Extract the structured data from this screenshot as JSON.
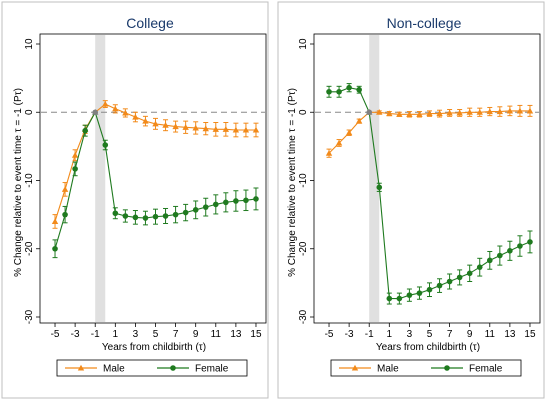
{
  "chart_data": [
    {
      "type": "line",
      "title": "College",
      "xlabel": "Years from childbirth (τ)",
      "ylabel": "% Change relative to event time τ = -1 (Pτ)",
      "xlim": [
        -5.5,
        15.5
      ],
      "ylim": [
        -30,
        10
      ],
      "xticks": [
        -5,
        -3,
        -1,
        1,
        3,
        5,
        7,
        9,
        11,
        13,
        15
      ],
      "yticks": [
        -30,
        -20,
        -10,
        0,
        10
      ],
      "shaded_band": [
        -1,
        0
      ],
      "reference_line": 0,
      "x": [
        -5,
        -4,
        -3,
        -2,
        -1,
        0,
        1,
        2,
        3,
        4,
        5,
        6,
        7,
        8,
        9,
        10,
        11,
        12,
        13,
        14,
        15
      ],
      "series": [
        {
          "name": "Male",
          "color": "#f28a1a",
          "marker": "triangle",
          "values": [
            -16,
            -11.3,
            -6.3,
            -2.5,
            0,
            1.2,
            0.5,
            -0.1,
            -0.7,
            -1.3,
            -1.7,
            -1.9,
            -2.1,
            -2.2,
            -2.3,
            -2.4,
            -2.5,
            -2.5,
            -2.6,
            -2.6,
            -2.6
          ],
          "err": [
            1,
            1,
            0.8,
            0.6,
            0,
            0.5,
            0.6,
            0.6,
            0.7,
            0.7,
            0.8,
            0.8,
            0.8,
            0.9,
            0.9,
            0.9,
            1,
            1,
            1,
            1,
            1
          ]
        },
        {
          "name": "Female",
          "color": "#1f7a1f",
          "marker": "circle",
          "values": [
            -20,
            -15,
            -8.3,
            -2.7,
            0,
            -4.8,
            -14.8,
            -15.2,
            -15.4,
            -15.5,
            -15.3,
            -15.2,
            -15,
            -14.7,
            -14.3,
            -13.9,
            -13.5,
            -13.2,
            -13,
            -12.9,
            -12.7
          ],
          "err": [
            1.3,
            1.2,
            1,
            0.8,
            0,
            0.7,
            0.8,
            0.9,
            1,
            1,
            1.1,
            1.1,
            1.2,
            1.2,
            1.3,
            1.3,
            1.4,
            1.4,
            1.5,
            1.5,
            1.6
          ]
        }
      ],
      "legend": {
        "position": "bottom",
        "entries": [
          "Male",
          "Female"
        ]
      }
    },
    {
      "type": "line",
      "title": "Non-college",
      "xlabel": "Years from childbirth (τ)",
      "ylabel": "% Change relative to event time τ = -1 (Pτ)",
      "xlim": [
        -5.5,
        15.5
      ],
      "ylim": [
        -30,
        10
      ],
      "xticks": [
        -5,
        -3,
        -1,
        1,
        3,
        5,
        7,
        9,
        11,
        13,
        15
      ],
      "yticks": [
        -30,
        -20,
        -10,
        0,
        10
      ],
      "shaded_band": [
        -1,
        0
      ],
      "reference_line": 0,
      "x": [
        -5,
        -4,
        -3,
        -2,
        -1,
        0,
        1,
        2,
        3,
        4,
        5,
        6,
        7,
        8,
        9,
        10,
        11,
        12,
        13,
        14,
        15
      ],
      "series": [
        {
          "name": "Male",
          "color": "#f28a1a",
          "marker": "triangle",
          "values": [
            -6,
            -4.5,
            -3,
            -1.3,
            0,
            0,
            -0.2,
            -0.3,
            -0.3,
            -0.3,
            -0.2,
            -0.2,
            -0.1,
            -0.1,
            0,
            0,
            0.1,
            0.1,
            0.2,
            0.2,
            0.2
          ],
          "err": [
            0.6,
            0.5,
            0.4,
            0.3,
            0,
            0.2,
            0.3,
            0.3,
            0.4,
            0.4,
            0.4,
            0.5,
            0.5,
            0.5,
            0.6,
            0.6,
            0.6,
            0.7,
            0.7,
            0.8,
            0.8
          ]
        },
        {
          "name": "Female",
          "color": "#1f7a1f",
          "marker": "circle",
          "values": [
            3,
            3,
            3.6,
            3.3,
            0,
            -11,
            -27.3,
            -27.3,
            -26.8,
            -26.5,
            -26,
            -25.4,
            -24.8,
            -24.2,
            -23.6,
            -22.7,
            -21.7,
            -21,
            -20.3,
            -19.6,
            -19
          ],
          "err": [
            0.8,
            0.8,
            0.6,
            0.5,
            0,
            0.6,
            0.8,
            0.8,
            0.9,
            0.9,
            1,
            1,
            1.1,
            1.1,
            1.2,
            1.3,
            1.3,
            1.4,
            1.4,
            1.5,
            1.6
          ]
        }
      ],
      "legend": {
        "position": "bottom",
        "entries": [
          "Male",
          "Female"
        ]
      }
    }
  ]
}
